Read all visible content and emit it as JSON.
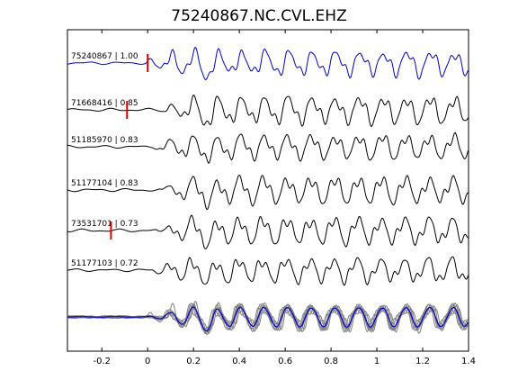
{
  "chart_data": {
    "type": "line",
    "title": "75240867.NC.CVL.EHZ",
    "xlabel": "",
    "ylabel": "",
    "xlim": [
      -0.35,
      1.4
    ],
    "x_ticks": [
      {
        "value": -0.2,
        "label": "-0.2"
      },
      {
        "value": 0,
        "label": "0"
      },
      {
        "value": 0.2,
        "label": "0.2"
      },
      {
        "value": 0.4,
        "label": "0.4"
      },
      {
        "value": 0.6,
        "label": "0.6"
      },
      {
        "value": 0.8,
        "label": "0.8"
      },
      {
        "value": 1,
        "label": "1"
      },
      {
        "value": 1.2,
        "label": "1.2"
      },
      {
        "value": 1.4,
        "label": "1.4"
      }
    ],
    "grid": false,
    "series": [
      {
        "name": "75240867 | 1.00",
        "color": "#0000cc",
        "pick": 0.0,
        "onset": 0.0
      },
      {
        "name": "71668416 | 0.85",
        "color": "#000000",
        "pick": -0.09,
        "onset": 0.08
      },
      {
        "name": "51185970 | 0.83",
        "color": "#000000",
        "pick": null,
        "onset": 0.05
      },
      {
        "name": "51177104 | 0.83",
        "color": "#000000",
        "pick": null,
        "onset": 0.08
      },
      {
        "name": "73531701 | 0.73",
        "color": "#000000",
        "pick": -0.16,
        "onset": 0.06
      },
      {
        "name": "51177103 | 0.72",
        "color": "#000000",
        "pick": null,
        "onset": 0.03
      }
    ],
    "stack": {
      "name": "stack",
      "color": "#0000cc",
      "overlay_color": "#808080"
    },
    "pick_color": "#dd0000"
  }
}
